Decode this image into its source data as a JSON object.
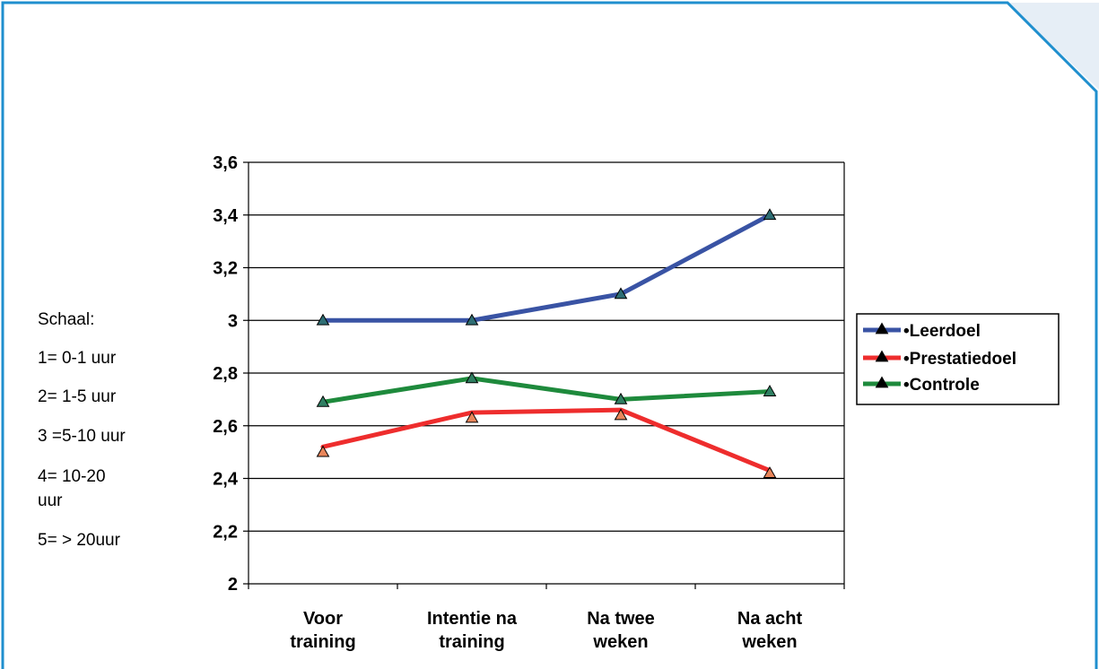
{
  "scale_note": {
    "lines": [
      "Schaal:",
      "1= 0-1 uur",
      "2= 1-5 uur",
      "3 =5-10 uur",
      "4= 10-20",
      "uur",
      "5= > 20uur"
    ]
  },
  "chart_data": {
    "type": "line",
    "categories": [
      [
        "Voor",
        "training"
      ],
      [
        "Intentie na",
        "training"
      ],
      [
        "Na twee",
        "weken"
      ],
      [
        "Na acht",
        "weken"
      ]
    ],
    "ylim": [
      2,
      3.6
    ],
    "yticks": [
      "3,6",
      "3,4",
      "3,2",
      "3",
      "2,8",
      "2,6",
      "2,4",
      "2,2",
      "2"
    ],
    "grid": true,
    "legend_position": "right",
    "series": [
      {
        "name": "•Leerdoel",
        "color": "#3953A4",
        "values": [
          3.0,
          3.0,
          3.1,
          3.4
        ],
        "markers": [
          3.0,
          3.0,
          3.1,
          3.4
        ]
      },
      {
        "name": "•Prestatiedoel",
        "color": "#EE2D2D",
        "values": [
          2.52,
          2.65,
          2.66,
          2.43
        ],
        "markers": [
          2.5,
          2.63,
          2.64,
          2.42
        ]
      },
      {
        "name": "•Controle",
        "color": "#1E8A3C",
        "values": [
          2.69,
          2.78,
          2.7,
          2.73
        ],
        "markers": [
          2.69,
          2.78,
          2.7,
          2.73
        ]
      }
    ]
  },
  "colors": {
    "frame_border": "#1F8FCE",
    "corner_fill": "#E6EEF6"
  }
}
